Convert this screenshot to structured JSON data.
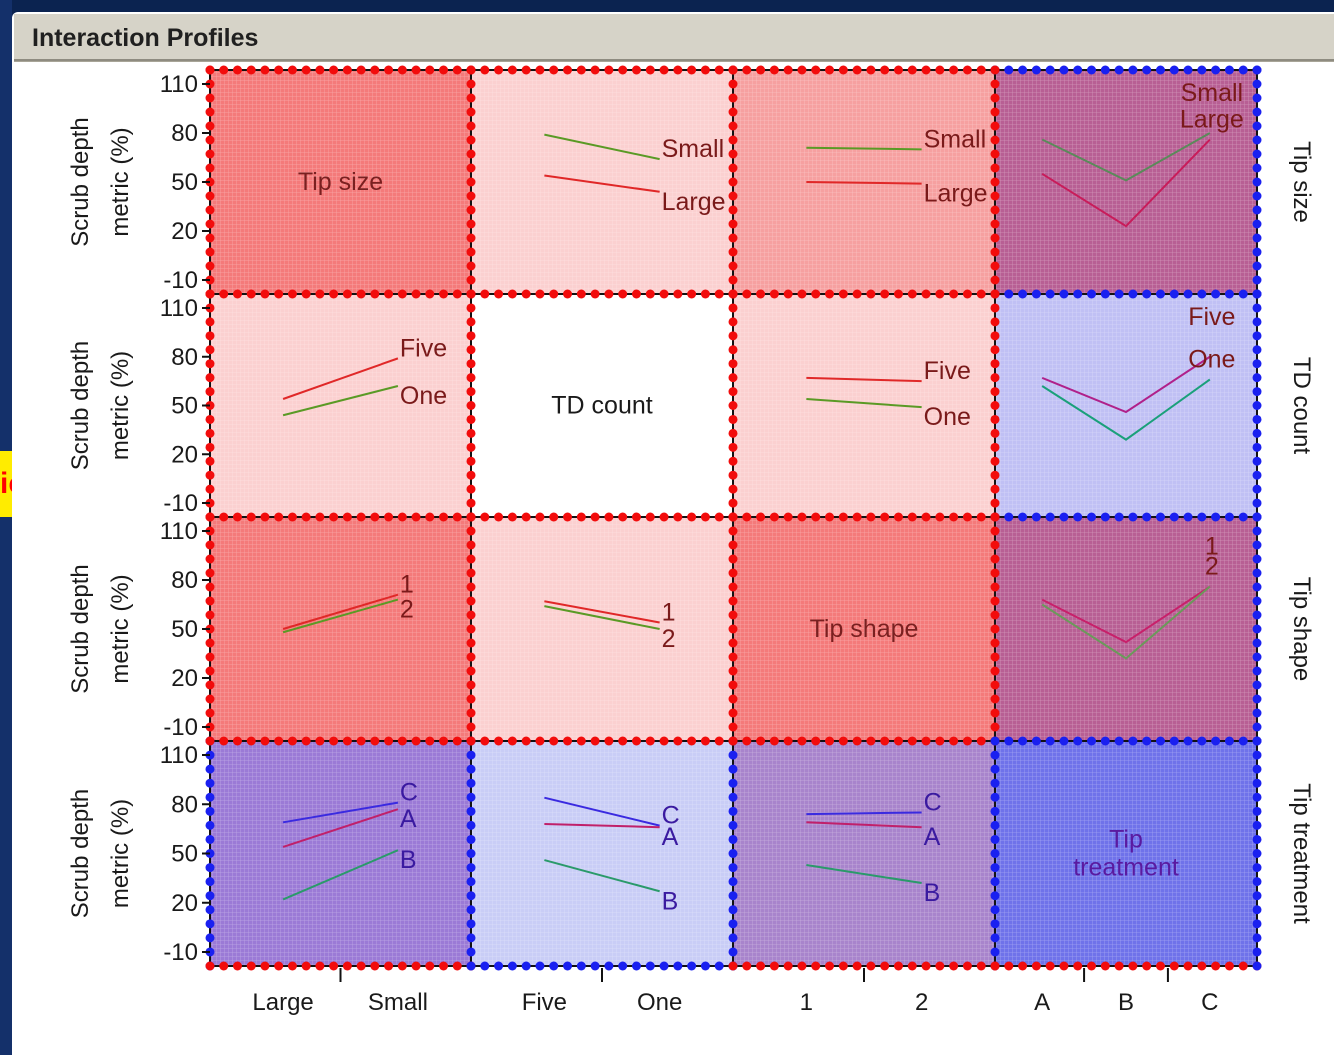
{
  "window": {
    "title": "Interaction Profiles",
    "left_tag": "ic"
  },
  "chart_data": {
    "type": "line",
    "title": "Interaction Profiles",
    "ylabel": "Scrub depth metric (%)",
    "ylim": [
      -10,
      110
    ],
    "yticks": [
      "110",
      "80",
      "50",
      "20",
      "-10"
    ],
    "grid": true,
    "factors": [
      {
        "name": "Tip size",
        "levels": [
          "Large",
          "Small"
        ]
      },
      {
        "name": "TD count",
        "levels": [
          "Five",
          "One"
        ]
      },
      {
        "name": "Tip shape",
        "levels": [
          "1",
          "2"
        ]
      },
      {
        "name": "Tip treatment",
        "levels": [
          "A",
          "B",
          "C"
        ]
      }
    ],
    "diagonal_labels": [
      "Tip size",
      "TD count",
      "Tip shape",
      "Tip treatment"
    ],
    "cells": [
      {
        "row": 0,
        "col": 1,
        "traces": [
          {
            "level": "Small",
            "values": [
              79,
              64
            ]
          },
          {
            "level": "Large",
            "values": [
              54,
              44
            ]
          }
        ]
      },
      {
        "row": 0,
        "col": 2,
        "traces": [
          {
            "level": "Small",
            "values": [
              71,
              70
            ]
          },
          {
            "level": "Large",
            "values": [
              50,
              49
            ]
          }
        ]
      },
      {
        "row": 0,
        "col": 3,
        "traces": [
          {
            "level": "Small",
            "values": [
              76,
              51,
              80
            ]
          },
          {
            "level": "Large",
            "values": [
              55,
              23,
              76
            ]
          }
        ]
      },
      {
        "row": 1,
        "col": 0,
        "traces": [
          {
            "level": "Five",
            "values": [
              54,
              79
            ]
          },
          {
            "level": "One",
            "values": [
              44,
              62
            ]
          }
        ]
      },
      {
        "row": 1,
        "col": 2,
        "traces": [
          {
            "level": "Five",
            "values": [
              67,
              65
            ]
          },
          {
            "level": "One",
            "values": [
              54,
              49
            ]
          }
        ]
      },
      {
        "row": 1,
        "col": 3,
        "traces": [
          {
            "level": "Five",
            "values": [
              67,
              46,
              80
            ]
          },
          {
            "level": "One",
            "values": [
              62,
              29,
              66
            ]
          }
        ]
      },
      {
        "row": 2,
        "col": 0,
        "traces": [
          {
            "level": "1",
            "values": [
              50,
              71
            ]
          },
          {
            "level": "2",
            "values": [
              48,
              68
            ]
          }
        ]
      },
      {
        "row": 2,
        "col": 1,
        "traces": [
          {
            "level": "1",
            "values": [
              67,
              54
            ]
          },
          {
            "level": "2",
            "values": [
              64,
              50
            ]
          }
        ]
      },
      {
        "row": 2,
        "col": 3,
        "traces": [
          {
            "level": "1",
            "values": [
              68,
              42,
              76
            ]
          },
          {
            "level": "2",
            "values": [
              65,
              32,
              76
            ]
          }
        ]
      },
      {
        "row": 3,
        "col": 0,
        "traces": [
          {
            "level": "C",
            "values": [
              69,
              81
            ]
          },
          {
            "level": "A",
            "values": [
              54,
              77
            ]
          },
          {
            "level": "B",
            "values": [
              22,
              52
            ]
          }
        ]
      },
      {
        "row": 3,
        "col": 1,
        "traces": [
          {
            "level": "C",
            "values": [
              84,
              67
            ]
          },
          {
            "level": "A",
            "values": [
              68,
              66
            ]
          },
          {
            "level": "B",
            "values": [
              46,
              27
            ]
          }
        ]
      },
      {
        "row": 3,
        "col": 2,
        "traces": [
          {
            "level": "C",
            "values": [
              74,
              75
            ]
          },
          {
            "level": "A",
            "values": [
              69,
              66
            ]
          },
          {
            "level": "B",
            "values": [
              43,
              32
            ]
          }
        ]
      }
    ]
  }
}
